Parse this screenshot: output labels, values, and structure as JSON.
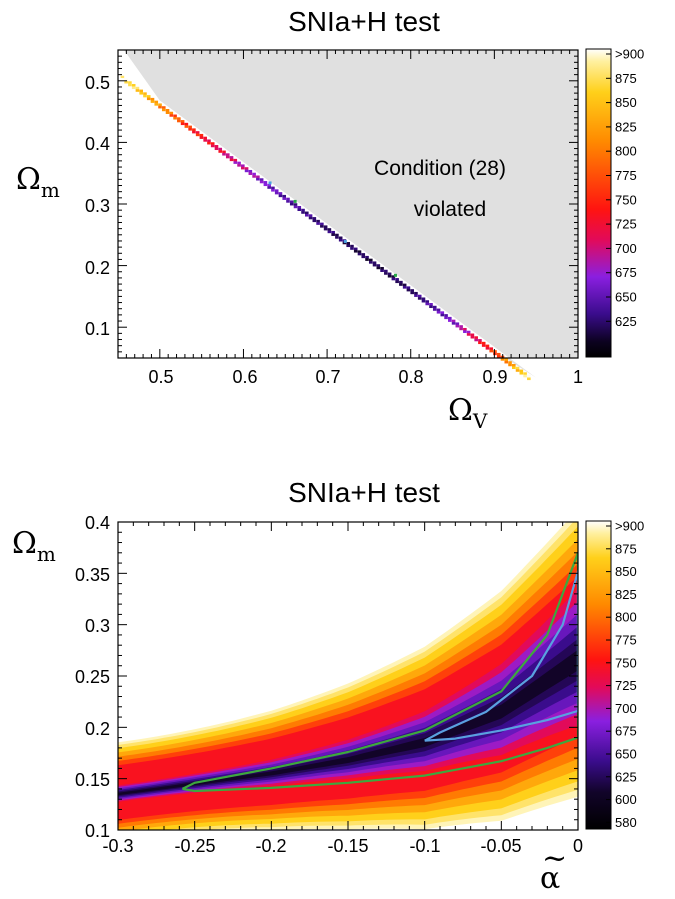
{
  "chart_data": [
    {
      "type": "heatmap",
      "title": "SNIa+H test",
      "xlabel": "Ω_V",
      "ylabel": "Ω_m",
      "xlim": [
        0.45,
        1.0
      ],
      "ylim": [
        0.05,
        0.55
      ],
      "x_ticks": [
        "0.5",
        "0.6",
        "0.7",
        "0.8",
        "0.9",
        "1"
      ],
      "y_ticks": [
        "0.1",
        "0.2",
        "0.3",
        "0.4",
        "0.5"
      ],
      "annotation": [
        "Condition (28)",
        "violated"
      ],
      "excluded_region": "above line Ω_m ≈ 0.95 − Ω_V (grey)",
      "allowed_band_points": [
        {
          "x": 0.46,
          "y": 0.5,
          "value": 880
        },
        {
          "x": 0.5,
          "y": 0.46,
          "value": 820
        },
        {
          "x": 0.55,
          "y": 0.41,
          "value": 760
        },
        {
          "x": 0.6,
          "y": 0.36,
          "value": 720
        },
        {
          "x": 0.65,
          "y": 0.31,
          "value": 680
        },
        {
          "x": 0.7,
          "y": 0.26,
          "value": 650
        },
        {
          "x": 0.75,
          "y": 0.21,
          "value": 640
        },
        {
          "x": 0.8,
          "y": 0.16,
          "value": 650
        },
        {
          "x": 0.85,
          "y": 0.11,
          "value": 700
        },
        {
          "x": 0.9,
          "y": 0.07,
          "value": 780
        },
        {
          "x": 0.94,
          "y": 0.05,
          "value": 880
        }
      ],
      "colorbar": {
        "labels": [
          ">900",
          "875",
          "850",
          "825",
          "800",
          "775",
          "750",
          "725",
          "700",
          "675",
          "650",
          "625"
        ],
        "range": [
          600,
          900
        ]
      }
    },
    {
      "type": "heatmap",
      "title": "SNIa+H test",
      "xlabel": "α̃",
      "ylabel": "Ω_m",
      "xlim": [
        -0.3,
        0.0
      ],
      "ylim": [
        0.1,
        0.4
      ],
      "x_ticks": [
        "-0.3",
        "-0.25",
        "-0.2",
        "-0.15",
        "-0.1",
        "-0.05",
        "0"
      ],
      "y_ticks": [
        "0.1",
        "0.15",
        "0.2",
        "0.25",
        "0.3",
        "0.35",
        "0.4"
      ],
      "band_center": [
        {
          "x": -0.3,
          "y": 0.135
        },
        {
          "x": -0.25,
          "y": 0.145
        },
        {
          "x": -0.2,
          "y": 0.155
        },
        {
          "x": -0.15,
          "y": 0.168
        },
        {
          "x": -0.1,
          "y": 0.185
        },
        {
          "x": -0.05,
          "y": 0.215
        },
        {
          "x": 0.0,
          "y": 0.265
        }
      ],
      "contours": [
        {
          "name": "outer (green)",
          "color": "#3ea83e",
          "points": [
            [
              -0.258,
              0.14
            ],
            [
              -0.25,
              0.146
            ],
            [
              -0.2,
              0.16
            ],
            [
              -0.15,
              0.176
            ],
            [
              -0.1,
              0.197
            ],
            [
              -0.05,
              0.235
            ],
            [
              -0.02,
              0.29
            ],
            [
              0.0,
              0.37
            ],
            [
              0.0,
              0.19
            ],
            [
              -0.02,
              0.18
            ],
            [
              -0.05,
              0.167
            ],
            [
              -0.1,
              0.153
            ],
            [
              -0.15,
              0.146
            ],
            [
              -0.2,
              0.141
            ],
            [
              -0.25,
              0.138
            ],
            [
              -0.258,
              0.14
            ]
          ]
        },
        {
          "name": "inner (blue)",
          "color": "#5aa0e0",
          "points": [
            [
              -0.1,
              0.187
            ],
            [
              -0.09,
              0.195
            ],
            [
              -0.06,
              0.215
            ],
            [
              -0.03,
              0.25
            ],
            [
              -0.01,
              0.3
            ],
            [
              0.0,
              0.352
            ],
            [
              0.0,
              0.216
            ],
            [
              -0.02,
              0.207
            ],
            [
              -0.05,
              0.197
            ],
            [
              -0.08,
              0.189
            ],
            [
              -0.1,
              0.187
            ]
          ]
        }
      ],
      "colorbar": {
        "labels": [
          ">900",
          "875",
          "850",
          "825",
          "800",
          "775",
          "750",
          "725",
          "700",
          "675",
          "650",
          "625",
          "600",
          "580"
        ],
        "range": [
          580,
          900
        ]
      }
    }
  ]
}
